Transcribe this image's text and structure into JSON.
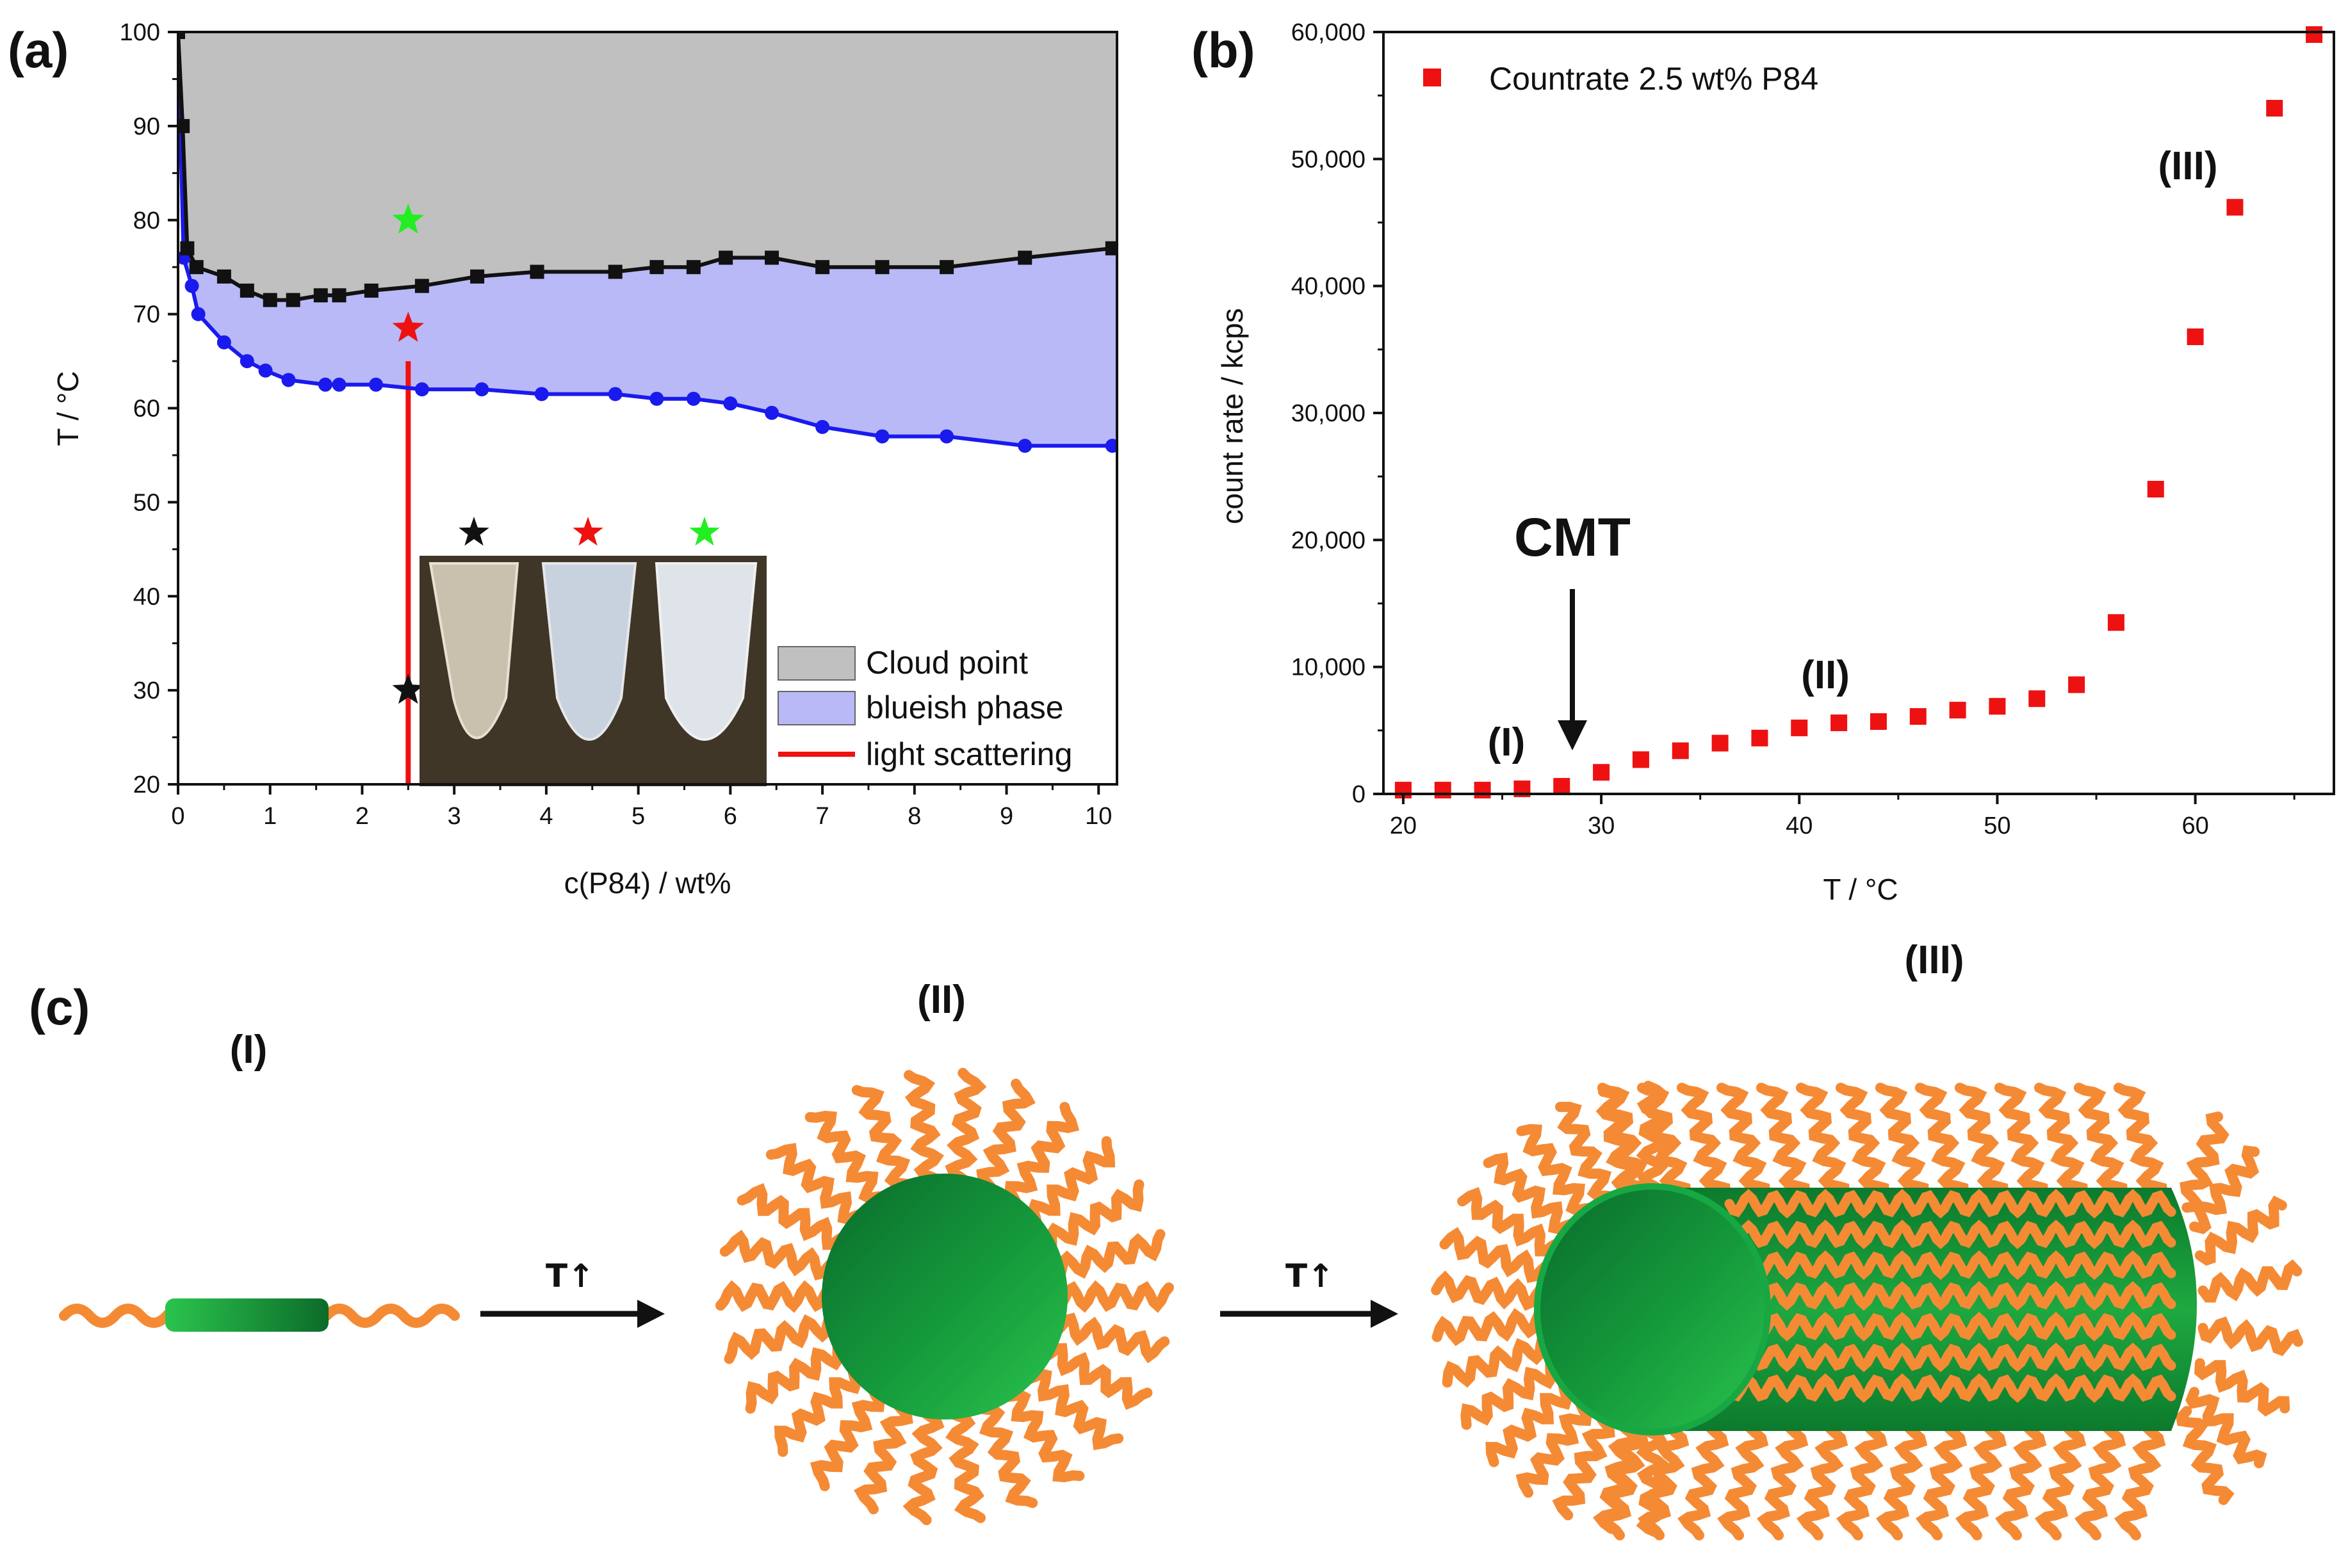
{
  "colors": {
    "cloud_fill": "#c0c0c0",
    "blue_fill": "#b9b9f8",
    "black_line": "#111111",
    "blue_line": "#1a1aee",
    "red": "#ee1111",
    "green_star": "#22ee22",
    "orange": "#f58a35",
    "green_core": "#1e9b3e"
  },
  "chart_data": [
    {
      "panel": "(a)",
      "type": "line",
      "xlabel": "c(P84) / wt%",
      "ylabel": "T / °C",
      "xlim": [
        0,
        10.2
      ],
      "ylim": [
        20,
        100
      ],
      "xticks": [
        0,
        1,
        2,
        3,
        4,
        5,
        6,
        7,
        8,
        9,
        10
      ],
      "yticks": [
        20,
        30,
        40,
        50,
        60,
        70,
        80,
        90,
        100
      ],
      "series": [
        {
          "name": "Cloud point",
          "marker": "square",
          "x": [
            0,
            0.05,
            0.1,
            0.2,
            0.5,
            0.75,
            1.0,
            1.25,
            1.55,
            1.75,
            2.1,
            2.65,
            3.25,
            3.9,
            4.75,
            5.2,
            5.6,
            5.95,
            6.45,
            7.0,
            7.65,
            8.35,
            9.2,
            10.15
          ],
          "y": [
            100,
            90,
            77,
            75,
            74,
            72.5,
            71.5,
            71.5,
            72,
            72,
            72.5,
            73,
            74,
            74.5,
            74.5,
            75,
            75,
            76,
            76,
            75,
            75,
            75,
            76,
            77
          ]
        },
        {
          "name": "blueish phase",
          "marker": "circle",
          "x": [
            0,
            0.06,
            0.15,
            0.22,
            0.5,
            0.75,
            0.95,
            1.2,
            1.6,
            1.75,
            2.15,
            2.65,
            3.3,
            3.95,
            4.75,
            5.2,
            5.6,
            6.0,
            6.45,
            7.0,
            7.65,
            8.35,
            9.2,
            10.15
          ],
          "y": [
            100,
            76,
            73,
            70,
            67,
            65,
            64,
            63,
            62.5,
            62.5,
            62.5,
            62,
            62,
            61.5,
            61.5,
            61,
            61,
            60.5,
            59.5,
            58,
            57,
            57,
            56,
            56
          ]
        }
      ],
      "light_scattering": {
        "x": 2.5,
        "y_from": 20,
        "y_to": 65
      },
      "stars": [
        {
          "x": 2.5,
          "y": 30,
          "color": "black"
        },
        {
          "x": 2.5,
          "y": 68.5,
          "color": "red"
        },
        {
          "x": 2.5,
          "y": 80,
          "color": "green"
        }
      ],
      "legend": [
        "Cloud point",
        "blueish phase",
        "light scattering"
      ]
    },
    {
      "panel": "(b)",
      "type": "scatter",
      "xlabel": "T / °C",
      "ylabel": "count rate / kcps",
      "xlim": [
        19,
        67
      ],
      "ylim": [
        0,
        60000
      ],
      "xticks": [
        20,
        30,
        40,
        50,
        60
      ],
      "yticks": [
        0,
        10000,
        20000,
        30000,
        40000,
        50000,
        60000
      ],
      "ytick_labels": [
        "0",
        "10,000",
        "20,000",
        "30,000",
        "40,000",
        "50,000",
        "60,000"
      ],
      "series": [
        {
          "name": "Countrate 2.5 wt% P84",
          "x": [
            20,
            22,
            24,
            26,
            28,
            30,
            32,
            34,
            36,
            38,
            40,
            42,
            44,
            46,
            48,
            50,
            52,
            54,
            56,
            58,
            60,
            62,
            64,
            66
          ],
          "y": [
            300,
            300,
            300,
            400,
            600,
            1700,
            2700,
            3400,
            4000,
            4400,
            5200,
            5600,
            5700,
            6100,
            6600,
            6900,
            7500,
            8600,
            13500,
            24000,
            36000,
            46200,
            54000,
            59800
          ]
        }
      ],
      "annotations": [
        {
          "text": "CMT",
          "x": 28.5,
          "y": 20000
        },
        {
          "text": "(I)",
          "x": 25,
          "y": 4000
        },
        {
          "text": "(II)",
          "x": 41.5,
          "y": 9500
        },
        {
          "text": "(III)",
          "x": 59.5,
          "y": 50000
        }
      ]
    }
  ],
  "panel_c": {
    "label": "(c)",
    "stage_labels": [
      "(I)",
      "(II)",
      "(III)"
    ],
    "arrow_labels": [
      "T↑",
      "T↑"
    ]
  }
}
